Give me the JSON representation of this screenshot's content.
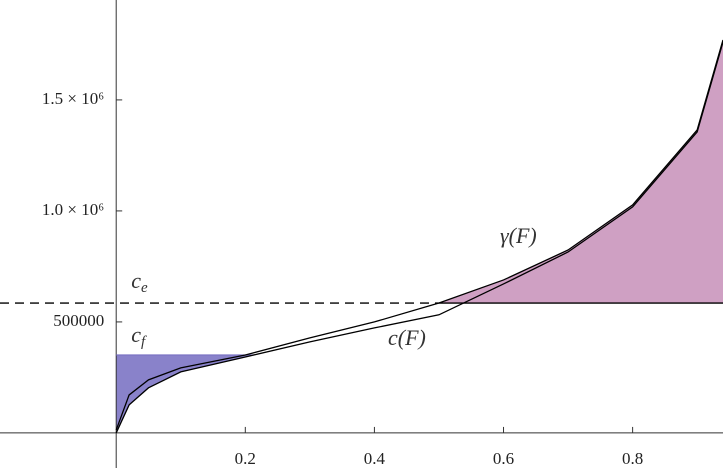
{
  "chart_data": {
    "type": "line",
    "xlim": [
      -0.18,
      0.94
    ],
    "ylim": [
      -158000,
      1950000
    ],
    "xticks": [
      0.2,
      0.4,
      0.6,
      0.8
    ],
    "yticks": [
      500000,
      {
        "value": 1000000,
        "label": "1.0 × 10⁶"
      },
      {
        "value": 1500000,
        "label": "1.5 × 10⁶"
      }
    ],
    "series": [
      {
        "name": "γ(F)",
        "color": "#000000",
        "x": [
          0,
          0.02,
          0.05,
          0.1,
          0.2,
          0.3,
          0.4,
          0.5,
          0.6,
          0.7,
          0.8,
          0.9,
          0.94
        ],
        "values": [
          13500,
          171000,
          239000,
          293000,
          351000,
          428000,
          500000,
          585000,
          689000,
          824000,
          1027000,
          1365000,
          1770000
        ]
      },
      {
        "name": "c(F)",
        "color": "#000000",
        "x": [
          0,
          0.02,
          0.05,
          0.1,
          0.2,
          0.3,
          0.4,
          0.5,
          0.6,
          0.7,
          0.8,
          0.9,
          0.94
        ],
        "values": [
          0,
          126000,
          203000,
          275000,
          342000,
          410000,
          473000,
          532000,
          671000,
          815000,
          1018000,
          1356000,
          1761000
        ]
      }
    ],
    "hlines": [
      {
        "name": {
          "text": "c",
          "sub": "e"
        },
        "value": 585000,
        "color": "#000000"
      },
      {
        "name": {
          "text": "c",
          "sub": "f"
        },
        "value": 351000,
        "color": "#000000"
      }
    ],
    "fill_colors": [
      "#c78fb8",
      "#7c74c4"
    ]
  }
}
